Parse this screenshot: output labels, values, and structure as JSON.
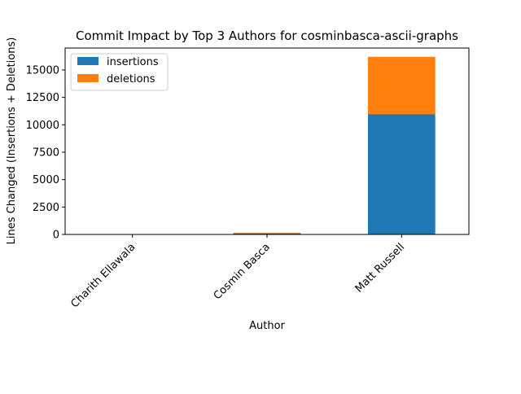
{
  "chart_data": {
    "type": "bar",
    "stacked": true,
    "title": "Commit Impact by Top 3 Authors for cosminbasca-ascii-graphs",
    "xlabel": "Author",
    "ylabel": "Lines Changed (Insertions + Deletions)",
    "categories": [
      "Charith Ellawala",
      "Cosmin Basca",
      "Matt Russell"
    ],
    "series": [
      {
        "name": "insertions",
        "color": "#1f77b4",
        "values": [
          10,
          100,
          10950
        ]
      },
      {
        "name": "deletions",
        "color": "#ff7f0e",
        "values": [
          5,
          60,
          5250
        ]
      }
    ],
    "ylim": [
      0,
      17000
    ],
    "yticks": [
      0,
      2500,
      5000,
      7500,
      10000,
      12500,
      15000
    ],
    "ytick_labels": [
      "0",
      "2500",
      "5000",
      "7500",
      "10000",
      "12500",
      "15000"
    ],
    "grid": false,
    "legend_position": "top-left"
  }
}
